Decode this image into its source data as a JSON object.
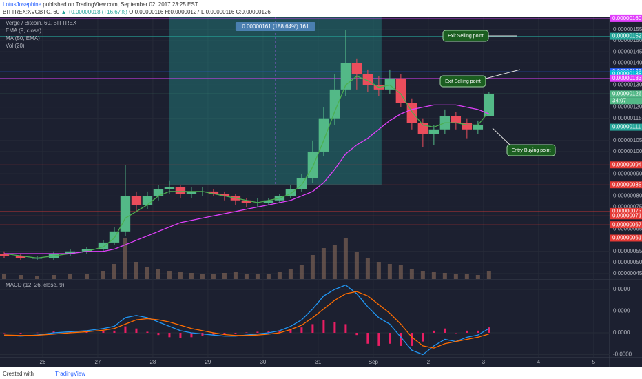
{
  "header": {
    "publisher": "LotusJosephine",
    "published": "published on TradingView.com, September 02, 2017 23:25 EST",
    "symbol": "BITTREX:XVGBTC, 60",
    "change": "▲ +0.00000018 (+16.67%)",
    "ohlc": "O:0.00000116 H:0.00000127 L:0.00000116 C:0.00000126"
  },
  "footer": {
    "created": "Created with",
    "brand": "TradingView"
  },
  "chart_data": {
    "type": "candlestick",
    "legend": [
      "Verge / Bitcoin, 60, BITTREX",
      "EMA (9, close)",
      "MA (50, EMA)",
      "Vol (20)"
    ],
    "xlim": [
      25.225,
      36.29
    ],
    "xticks": [
      26,
      27,
      28,
      29,
      30,
      31,
      {
        "value": 32,
        "label": "Sep"
      },
      {
        "value": 33,
        "label": "2"
      },
      {
        "value": 34,
        "label": "3"
      },
      {
        "value": 35,
        "label": "4"
      },
      {
        "value": 36,
        "label": "5"
      }
    ],
    "ylim": [
      4.25e-07,
      1.609e-06
    ],
    "yticks": [
      {
        "value": 1.55e-06,
        "label": "0.00000155"
      },
      {
        "value": 1.5e-06,
        "label": "0.00000150"
      },
      {
        "value": 1.45e-06,
        "label": "0.00000145"
      },
      {
        "value": 1.4e-06,
        "label": "0.00000140"
      },
      {
        "value": 1.3e-06,
        "label": "0.00000130"
      },
      {
        "value": 1.2e-06,
        "label": "0.00000120"
      },
      {
        "value": 1.15e-06,
        "label": "0.00000115"
      },
      {
        "value": 1.05e-06,
        "label": "0.00000105"
      },
      {
        "value": 1e-06,
        "label": "0.00000100"
      },
      {
        "value": 9e-07,
        "label": "0.00000090"
      },
      {
        "value": 8e-07,
        "label": "0.00000080"
      },
      {
        "value": 7.5e-07,
        "label": "0.00000075"
      },
      {
        "value": 6.5e-07,
        "label": "0.00000065"
      },
      {
        "value": 5.5e-07,
        "label": "0.00000055"
      },
      {
        "value": 5e-07,
        "label": "0.00000050"
      },
      {
        "value": 4.5e-07,
        "label": "0.00000045"
      }
    ],
    "x": [
      25.3,
      25.6,
      25.9,
      26.2,
      26.5,
      26.8,
      27.1,
      27.3,
      27.5,
      27.7,
      27.9,
      28.1,
      28.3,
      28.5,
      28.7,
      28.9,
      29.1,
      29.3,
      29.5,
      29.7,
      29.9,
      30.1,
      30.3,
      30.5,
      30.7,
      30.9,
      31.1,
      31.3,
      31.5,
      31.7,
      31.9,
      32.1,
      32.3,
      32.5,
      32.7,
      32.9,
      33.1,
      33.3,
      33.5,
      33.7,
      33.9,
      34.1
    ],
    "open": [
      5.4e-07,
      5.3e-07,
      5.2e-07,
      5.2e-07,
      5.4e-07,
      5.5e-07,
      5.6e-07,
      5.9e-07,
      6.4e-07,
      8e-07,
      7.6e-07,
      8e-07,
      8.3e-07,
      8.4e-07,
      8.1e-07,
      8.2e-07,
      8.2e-07,
      8.1e-07,
      8e-07,
      7.8e-07,
      7.7e-07,
      7.7e-07,
      7.8e-07,
      8e-07,
      8.3e-07,
      8.8e-07,
      1e-06,
      1.15e-06,
      1.28e-06,
      1.4e-06,
      1.35e-06,
      1.3e-06,
      1.28e-06,
      1.33e-06,
      1.22e-06,
      1.13e-06,
      1.08e-06,
      1.1e-06,
      1.16e-06,
      1.13e-06,
      1.1e-06,
      1.16e-06
    ],
    "high": [
      5.5e-07,
      5.4e-07,
      5.3e-07,
      5.5e-07,
      5.6e-07,
      5.7e-07,
      6e-07,
      6.6e-07,
      9.4e-07,
      8.2e-07,
      8.2e-07,
      8.5e-07,
      8.7e-07,
      8.5e-07,
      8.4e-07,
      8.4e-07,
      8.3e-07,
      8.2e-07,
      8.1e-07,
      7.9e-07,
      7.9e-07,
      7.9e-07,
      8.1e-07,
      8.5e-07,
      9e-07,
      1.05e-06,
      1.2e-06,
      1.35e-06,
      1.55e-06,
      1.42e-06,
      1.37e-06,
      1.34e-06,
      1.37e-06,
      1.35e-06,
      1.24e-06,
      1.15e-06,
      1.12e-06,
      1.19e-06,
      1.18e-06,
      1.15e-06,
      1.14e-06,
      1.27e-06
    ],
    "low": [
      5.2e-07,
      5.1e-07,
      5.1e-07,
      5.1e-07,
      5.3e-07,
      5.4e-07,
      5.5e-07,
      5.8e-07,
      6.2e-07,
      7.3e-07,
      7.4e-07,
      7.8e-07,
      8.1e-07,
      7.9e-07,
      7.9e-07,
      8e-07,
      8e-07,
      7.8e-07,
      7.6e-07,
      7.5e-07,
      7.5e-07,
      7.6e-07,
      7.7e-07,
      7.9e-07,
      8.2e-07,
      8.6e-07,
      9.8e-07,
      1.12e-06,
      1.25e-06,
      1.28e-06,
      1.27e-06,
      1.25e-06,
      1.26e-06,
      1.2e-06,
      1.1e-06,
      1.02e-06,
      1.03e-06,
      1.08e-06,
      1.1e-06,
      1.06e-06,
      1.08e-06,
      1.16e-06
    ],
    "close": [
      5.3e-07,
      5.2e-07,
      5.2e-07,
      5.4e-07,
      5.5e-07,
      5.6e-07,
      5.9e-07,
      6.4e-07,
      8e-07,
      7.6e-07,
      8e-07,
      8.3e-07,
      8.4e-07,
      8.1e-07,
      8.2e-07,
      8.2e-07,
      8.1e-07,
      8e-07,
      7.8e-07,
      7.7e-07,
      7.7e-07,
      7.8e-07,
      8e-07,
      8.3e-07,
      8.8e-07,
      1e-06,
      1.15e-06,
      1.28e-06,
      1.4e-06,
      1.35e-06,
      1.3e-06,
      1.28e-06,
      1.33e-06,
      1.22e-06,
      1.13e-06,
      1.08e-06,
      1.1e-06,
      1.16e-06,
      1.13e-06,
      1.1e-06,
      1.12e-06,
      1.26e-06
    ],
    "up_color": "#53b987",
    "down_color": "#eb4d5c",
    "series": [
      {
        "name": "EMA (9, close)",
        "color": "#4caf50",
        "values": [
          5.4e-07,
          5.3e-07,
          5.2e-07,
          5.3e-07,
          5.4e-07,
          5.5e-07,
          5.7e-07,
          6.1e-07,
          7e-07,
          7.3e-07,
          7.6e-07,
          8e-07,
          8.2e-07,
          8.2e-07,
          8.2e-07,
          8.2e-07,
          8.1e-07,
          8e-07,
          7.9e-07,
          7.8e-07,
          7.7e-07,
          7.8e-07,
          7.9e-07,
          8.1e-07,
          8.5e-07,
          9.3e-07,
          1.05e-06,
          1.18e-06,
          1.3e-06,
          1.34e-06,
          1.32e-06,
          1.29e-06,
          1.3e-06,
          1.26e-06,
          1.18e-06,
          1.12e-06,
          1.11e-06,
          1.13e-06,
          1.13e-06,
          1.12e-06,
          1.12e-06,
          1.18e-06
        ]
      },
      {
        "name": "MA (50, EMA)",
        "color": "#e040fb",
        "values": [
          5.4e-07,
          5.4e-07,
          5.4e-07,
          5.4e-07,
          5.4e-07,
          5.5e-07,
          5.5e-07,
          5.6e-07,
          5.8e-07,
          6e-07,
          6.2e-07,
          6.4e-07,
          6.6e-07,
          6.8e-07,
          6.9e-07,
          7e-07,
          7.1e-07,
          7.2e-07,
          7.3e-07,
          7.4e-07,
          7.5e-07,
          7.6e-07,
          7.7e-07,
          7.8e-07,
          8e-07,
          8.2e-07,
          8.6e-07,
          9.2e-07,
          9.9e-07,
          1.03e-06,
          1.06e-06,
          1.1e-06,
          1.14e-06,
          1.17e-06,
          1.19e-06,
          1.2e-06,
          1.21e-06,
          1.21e-06,
          1.21e-06,
          1.2e-06,
          1.19e-06,
          1.17e-06
        ]
      }
    ],
    "volume": {
      "color": "#8a6d5a",
      "values": [
        8,
        6,
        5,
        6,
        7,
        8,
        12,
        22,
        60,
        25,
        18,
        14,
        12,
        10,
        9,
        8,
        8,
        9,
        10,
        8,
        7,
        8,
        10,
        14,
        20,
        35,
        45,
        50,
        60,
        40,
        30,
        25,
        22,
        20,
        15,
        12,
        10,
        9,
        8,
        7,
        6,
        12
      ]
    },
    "levels": [
      {
        "value": 1.6e-06,
        "label": "0.00000160",
        "color": "#e040fb"
      },
      {
        "value": 1.52e-06,
        "label": "0.00000152",
        "color": "#26a69a"
      },
      {
        "value": 1.36e-06,
        "label": "0.00000136",
        "color": "#2962ff"
      },
      {
        "value": 1.35e-06,
        "label": "0.00000135",
        "color": "#00bcd4"
      },
      {
        "value": 1.33e-06,
        "label": "0.00000133",
        "color": "#e040fb"
      },
      {
        "value": 1.26e-06,
        "label": "0.00000126",
        "color": "#53b987"
      },
      {
        "value": 1.11e-06,
        "label": "0.00000111",
        "color": "#26a69a"
      },
      {
        "value": 9.4e-07,
        "label": "0.00000094",
        "color": "#e53935"
      },
      {
        "value": 8.5e-07,
        "label": "0.00000085",
        "color": "#e53935"
      },
      {
        "value": 7.3e-07,
        "label": "0.00000073",
        "color": "#e53935"
      },
      {
        "value": 7.1e-07,
        "label": "0.00000071",
        "color": "#e53935"
      },
      {
        "value": 6.7e-07,
        "label": "0.00000067",
        "color": "#e53935"
      },
      {
        "value": 6.1e-07,
        "label": "0.00000061",
        "color": "#e53935"
      }
    ],
    "countdown": "34:07",
    "measure": {
      "x": [
        28.3,
        32.15
      ],
      "y": [
        8.5e-07,
        1.609e-06
      ],
      "label": "0.00000161 (188.64%) 161"
    },
    "annotations": [
      "Exit Selling point",
      "Exit Selling point",
      "Entry Buying point"
    ],
    "macd": {
      "title": "MACD (12, 26, close, 9)",
      "ylim": [
        -1.11e-08,
        2.38e-08
      ],
      "yticks": [
        {
          "value": 2e-08,
          "label": "0.0000"
        },
        {
          "value": 1e-08,
          "label": "0.0000"
        },
        {
          "value": 0,
          "label": "0.0000"
        },
        {
          "value": -1e-08,
          "label": "-0.0000"
        }
      ],
      "series": [
        {
          "name": "MACD",
          "color": "#2196f3",
          "values": [
            -1e-09,
            -1.5e-09,
            -1e-09,
            0,
            5e-10,
            1e-09,
            2e-09,
            3e-09,
            7e-09,
            8e-09,
            7e-09,
            5e-09,
            3e-09,
            1e-09,
            0,
            -5e-10,
            -1e-09,
            -1.5e-09,
            -1.5e-09,
            -1e-09,
            -5e-10,
            0,
            1e-09,
            3e-09,
            6e-09,
            1.1e-08,
            1.7e-08,
            2e-08,
            2.2e-08,
            1.8e-08,
            1.2e-08,
            7e-09,
            4e-09,
            -2e-09,
            -8e-09,
            -1e-08,
            -6e-09,
            -3e-09,
            -4e-09,
            -2e-09,
            -1e-09,
            2e-09
          ]
        },
        {
          "name": "Signal",
          "color": "#ff6d00",
          "values": [
            -1e-09,
            -1.2e-09,
            -1.1e-09,
            -6e-10,
            0,
            5e-10,
            1.2e-09,
            2e-09,
            4e-09,
            6e-09,
            6.5e-09,
            6e-09,
            5e-09,
            3.5e-09,
            2e-09,
            1e-09,
            0,
            -8e-10,
            -1.2e-09,
            -1.2e-09,
            -1e-09,
            -6e-10,
            0,
            1.5e-09,
            3.5e-09,
            7e-09,
            1.1e-08,
            1.5e-08,
            1.8e-08,
            1.9e-08,
            1.7e-08,
            1.3e-08,
            9e-09,
            4e-09,
            -2e-09,
            -6e-09,
            -7e-09,
            -5e-09,
            -4e-09,
            -3e-09,
            -2e-09,
            -5e-10
          ]
        }
      ],
      "histogram": {
        "color": "#e91e63",
        "values": [
          0,
          -3e-10,
          1e-10,
          6e-10,
          5e-10,
          5e-10,
          8e-10,
          1e-09,
          3e-09,
          2e-09,
          5e-10,
          -1e-09,
          -2e-09,
          -2.5e-09,
          -2e-09,
          -1.5e-09,
          -1e-09,
          -7e-10,
          -3e-10,
          2e-10,
          5e-10,
          6e-10,
          1e-09,
          1.5e-09,
          2.5e-09,
          4e-09,
          6e-09,
          5e-09,
          4e-09,
          -1e-09,
          -5e-09,
          -6e-09,
          -5e-09,
          -6e-09,
          -6e-09,
          -4e-09,
          1e-09,
          2e-09,
          0,
          1e-09,
          1e-09,
          2.5e-09
        ]
      }
    }
  }
}
